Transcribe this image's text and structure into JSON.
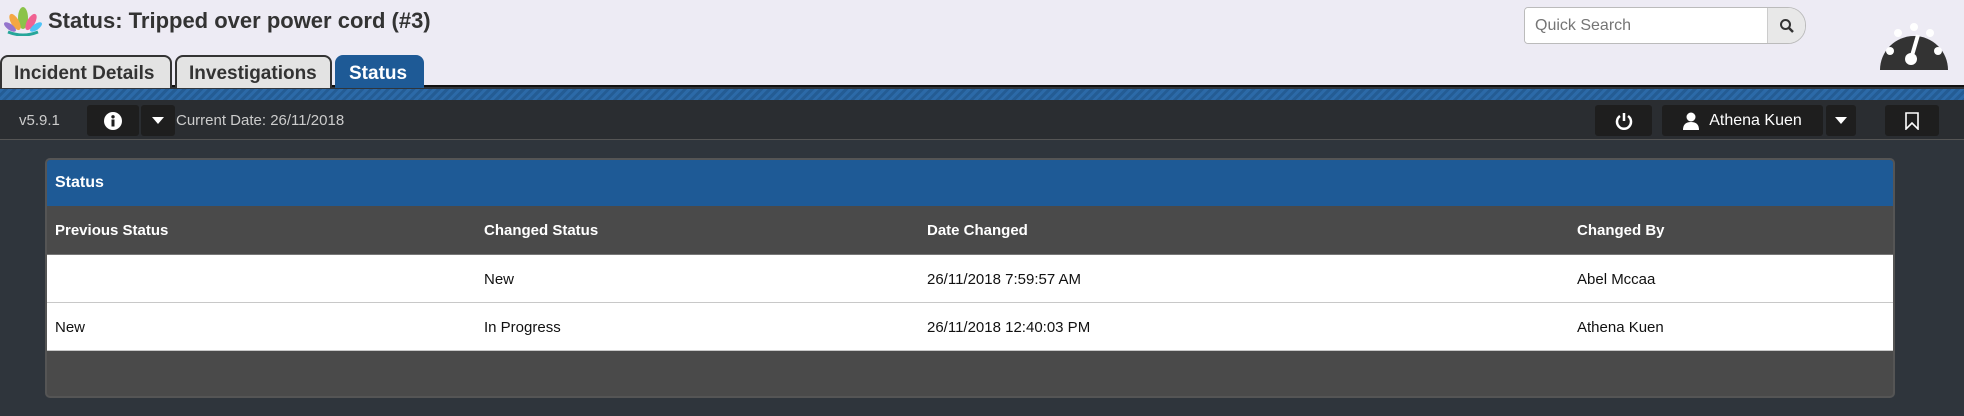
{
  "header": {
    "title": "Status: Tripped over power cord (#3)",
    "search_placeholder": "Quick Search"
  },
  "tabs": [
    {
      "label": "Incident Details"
    },
    {
      "label": "Investigations"
    },
    {
      "label": "Status",
      "active": true
    }
  ],
  "toolbar": {
    "version": "v5.9.1",
    "current_date": "Current Date: 26/11/2018",
    "user": "Athena Kuen"
  },
  "panel": {
    "title": "Status",
    "columns": [
      "Previous Status",
      "Changed Status",
      "Date Changed",
      "Changed By"
    ],
    "rows": [
      [
        "",
        "New",
        "26/11/2018 7:59:57 AM",
        "Abel Mccaa"
      ],
      [
        "New",
        "In Progress",
        "26/11/2018 12:40:03 PM",
        "Athena Kuen"
      ]
    ]
  },
  "colors": {
    "accent": "#1e5a96",
    "toolbar": "#2a2d31",
    "table_header": "#4a4a4a"
  }
}
